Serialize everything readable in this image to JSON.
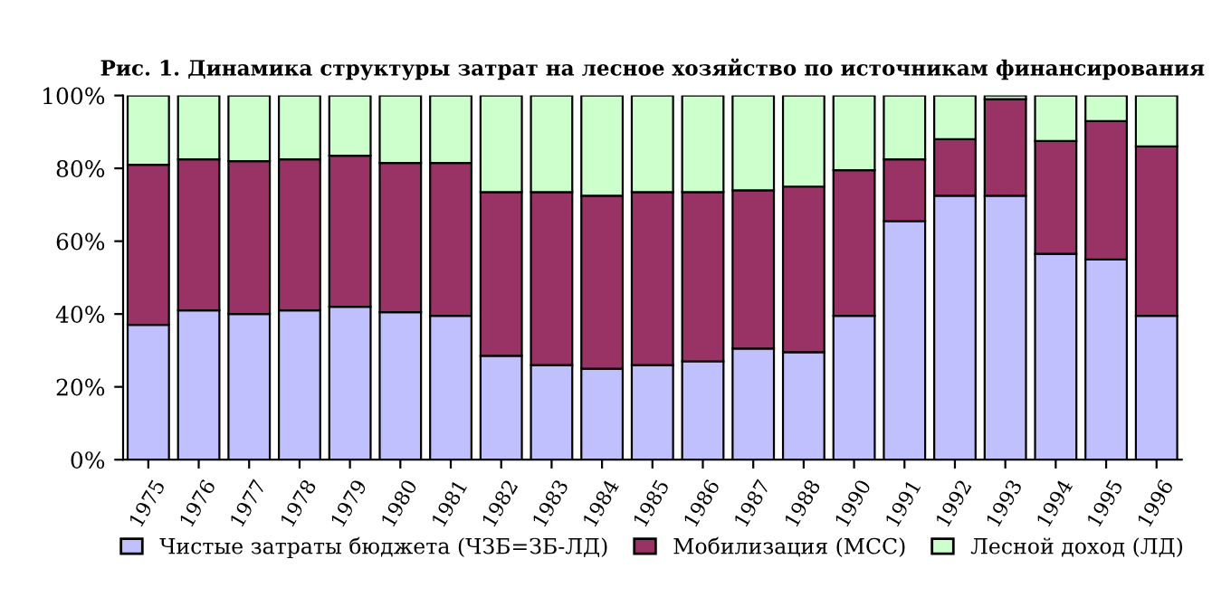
{
  "chart_data": {
    "type": "bar",
    "stacked": true,
    "title": "Рис. 1. Динамика структуры затрат на лесное хозяйство по источникам финансирования",
    "categories": [
      "1975",
      "1976",
      "1977",
      "1978",
      "1979",
      "1980",
      "1981",
      "1982",
      "1983",
      "1984",
      "1985",
      "1986",
      "1987",
      "1988",
      "1990",
      "1991",
      "1992",
      "1993",
      "1994",
      "1995",
      "1996"
    ],
    "series": [
      {
        "name": "Чистые затраты бюджета (ЧЗБ=ЗБ-ЛД)",
        "color": "#c0c0ff",
        "values": [
          37,
          41,
          40,
          41,
          42,
          40.5,
          39.5,
          28.5,
          26,
          25,
          26,
          27,
          30.5,
          29.5,
          39.5,
          65.5,
          72.5,
          72.5,
          56.5,
          55,
          39.5
        ]
      },
      {
        "name": "Мобилизация (МСС)",
        "color": "#993366",
        "values": [
          44,
          41.5,
          42,
          41.5,
          41.5,
          41,
          42,
          45,
          47.5,
          47.5,
          47.5,
          46.5,
          43.5,
          45.5,
          40,
          17,
          15.5,
          26.5,
          31,
          38,
          46.5
        ]
      },
      {
        "name": "Лесной доход (ЛД)",
        "color": "#ccffcc",
        "values": [
          19,
          17.5,
          18,
          17.5,
          16.5,
          18.5,
          18.5,
          26.5,
          26.5,
          27.5,
          26.5,
          26.5,
          26,
          25,
          20.5,
          17.5,
          12,
          1,
          12.5,
          7,
          14
        ]
      }
    ],
    "ylim": [
      0,
      100
    ],
    "yticks": [
      {
        "value": 0,
        "label": "0%"
      },
      {
        "value": 20,
        "label": "20%"
      },
      {
        "value": 40,
        "label": "40%"
      },
      {
        "value": 60,
        "label": "60%"
      },
      {
        "value": 80,
        "label": "80%"
      },
      {
        "value": 100,
        "label": "100%"
      }
    ],
    "grid": false,
    "legend": "bottom"
  }
}
